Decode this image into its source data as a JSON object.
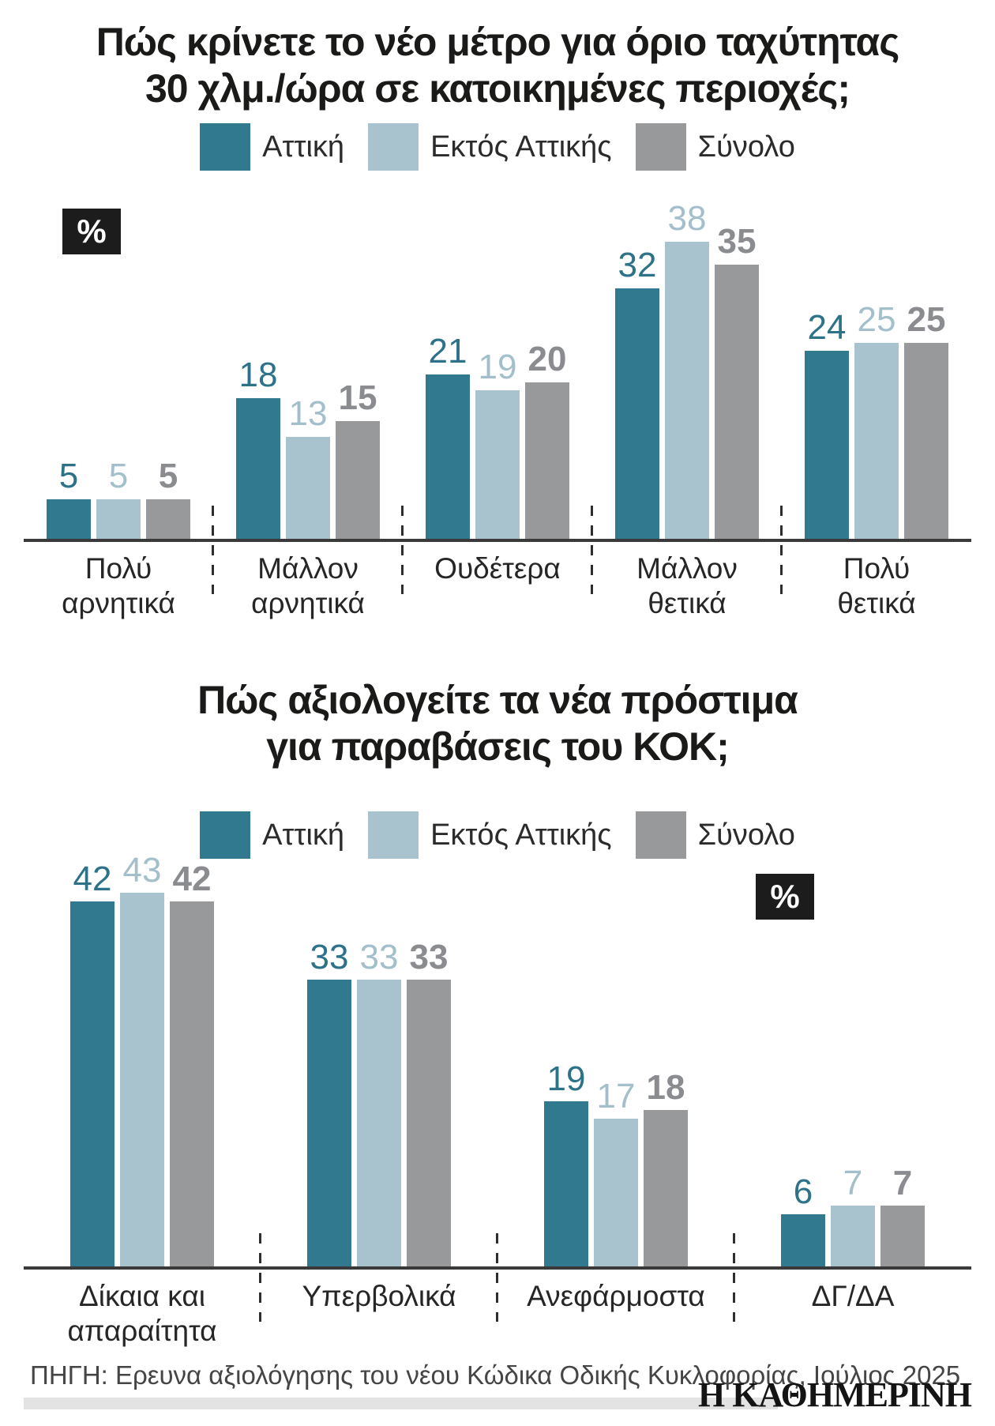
{
  "legend": {
    "items": [
      "Αττική",
      "Εκτός Αττικής",
      "Σύνολο"
    ]
  },
  "series_meta": [
    {
      "name": "Αττική",
      "bar_color": "#31798f",
      "label_color": "#2d7288",
      "label_bold": false
    },
    {
      "name": "Εκτός Αττικής",
      "bar_color": "#a8c3ce",
      "label_color": "#a3bfcb",
      "label_bold": false
    },
    {
      "name": "Σύνολο",
      "bar_color": "#98999b",
      "label_color": "#8a8c8f",
      "label_bold": true
    }
  ],
  "chart_data": [
    {
      "type": "bar",
      "title": "Πώς κρίνετε το νέο μέτρο για όριο ταχύτητας\n30 χλμ./ώρα σε κατοικημένες περιοχές;",
      "unit_label": "%",
      "categories": [
        "Πολύ\nαρνητικά",
        "Μάλλον\nαρνητικά",
        "Ουδέτερα",
        "Μάλλον\nθετικά",
        "Πολύ\nθετικά"
      ],
      "series": [
        {
          "name": "Αττική",
          "values": [
            5,
            18,
            21,
            32,
            24
          ]
        },
        {
          "name": "Εκτός Αττικής",
          "values": [
            5,
            13,
            19,
            38,
            25
          ]
        },
        {
          "name": "Σύνολο",
          "values": [
            5,
            15,
            20,
            35,
            25
          ]
        }
      ],
      "ylim": [
        0,
        40
      ],
      "grid": false,
      "legend_position": "top",
      "value_labels": true
    },
    {
      "type": "bar",
      "title": "Πώς αξιολογείτε τα νέα πρόστιμα\nγια παραβάσεις του ΚΟΚ;",
      "unit_label": "%",
      "categories": [
        "Δίκαια και\nαπαραίτητα",
        "Υπερβολικά",
        "Ανεφάρμοστα",
        "ΔΓ/ΔΑ"
      ],
      "series": [
        {
          "name": "Αττική",
          "values": [
            42,
            33,
            19,
            6
          ]
        },
        {
          "name": "Εκτός Αττικής",
          "values": [
            43,
            33,
            17,
            7
          ]
        },
        {
          "name": "Σύνολο",
          "values": [
            42,
            33,
            18,
            7
          ]
        }
      ],
      "ylim": [
        0,
        45
      ],
      "grid": false,
      "legend_position": "top",
      "value_labels": true
    }
  ],
  "footer": {
    "source": "ΠΗΓΗ: Ερευνα αξιολόγησης του νέου Κώδικα Οδικής Κυκλοφορίας, Ιούλιος 2025",
    "brand": "Η ΚΑΘΗΜΕΡΙΝΗ"
  }
}
